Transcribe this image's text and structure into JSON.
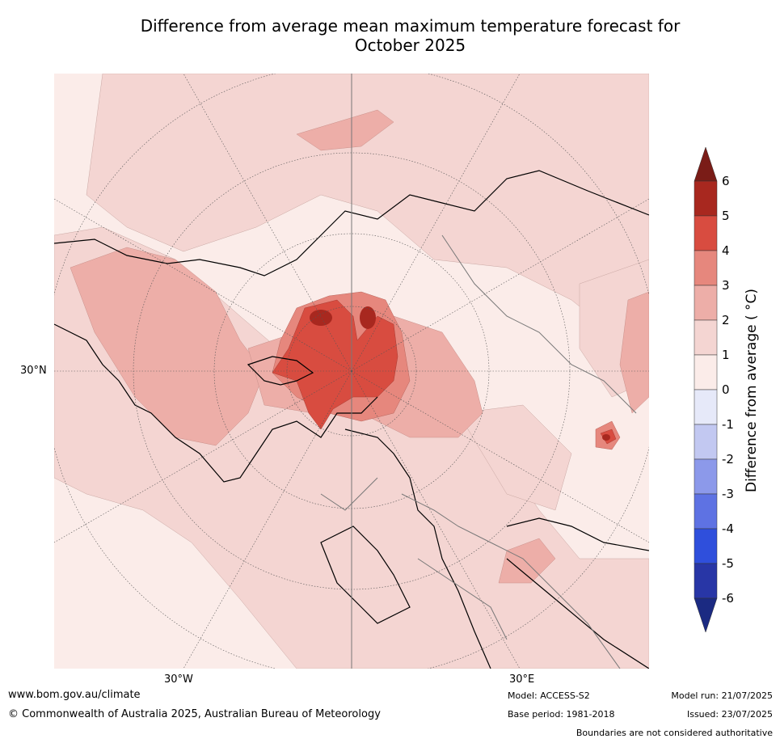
{
  "title": {
    "line1": "Difference from average mean maximum temperature forecast for",
    "line2": "October 2025"
  },
  "map": {
    "projection": "north-polar-stereographic",
    "lat_labels": [
      "30°N"
    ],
    "lon_labels": [
      "30°W",
      "30°E"
    ]
  },
  "colorbar": {
    "label": "Difference from average ( °C)",
    "ticks": [
      "6",
      "5",
      "4",
      "3",
      "2",
      "1",
      "0",
      "-1",
      "-2",
      "-3",
      "-4",
      "-5",
      "-6"
    ],
    "extend_colors": {
      "top": "#7a1c17",
      "bottom": "#1b2a82"
    },
    "bins": [
      {
        "range": "5 to 6",
        "color": "#a8281f"
      },
      {
        "range": "4 to 5",
        "color": "#d84c40"
      },
      {
        "range": "3 to 4",
        "color": "#e6877d"
      },
      {
        "range": "2 to 3",
        "color": "#edaea8"
      },
      {
        "range": "1 to 2",
        "color": "#f4d5d2"
      },
      {
        "range": "0 to 1",
        "color": "#fbece9"
      },
      {
        "range": "-1 to 0",
        "color": "#e6e9f9"
      },
      {
        "range": "-2 to -1",
        "color": "#c2c8f1"
      },
      {
        "range": "-3 to -2",
        "color": "#8c99ea"
      },
      {
        "range": "-4 to -3",
        "color": "#5e72e3"
      },
      {
        "range": "-5 to -4",
        "color": "#2f4fdc"
      },
      {
        "range": "-6 to -5",
        "color": "#2836a6"
      }
    ]
  },
  "footer": {
    "website": "www.bom.gov.au/climate",
    "copyright": "© Commonwealth of Australia 2025, Australian Bureau of Meteorology",
    "model": "Model: ACCESS-S2",
    "base_period": "Base period: 1981-2018",
    "model_run": "Model run: 21/07/2025",
    "issued": "Issued: 23/07/2025",
    "disclaimer": "Boundaries are not considered authoritative"
  }
}
